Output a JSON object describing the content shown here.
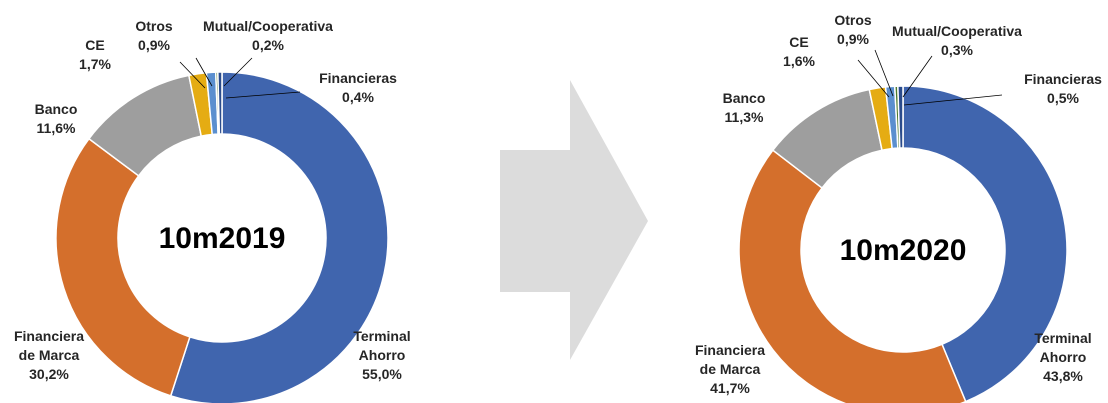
{
  "chart_data": [
    {
      "type": "pie",
      "title": "10m2019",
      "categories": [
        "Terminal Ahorro",
        "Financiera de Marca",
        "Banco",
        "CE",
        "Otros",
        "Mutual/Cooperativa",
        "Financieras"
      ],
      "values": [
        55.0,
        30.2,
        11.6,
        1.7,
        0.9,
        0.2,
        0.4
      ],
      "labels": [
        [
          "Terminal",
          "Ahorro",
          "55,0%"
        ],
        [
          "Financiera",
          "de Marca",
          "30,2%"
        ],
        [
          "Banco",
          "11,6%"
        ],
        [
          "CE",
          "1,7%"
        ],
        [
          "Otros",
          "0,9%"
        ],
        [
          "Mutual/Cooperativa",
          "0,2%"
        ],
        [
          "Financieras",
          "0,4%"
        ]
      ]
    },
    {
      "type": "pie",
      "title": "10m2020",
      "categories": [
        "Terminal Ahorro",
        "Financiera de Marca",
        "Banco",
        "CE",
        "Otros",
        "Mutual/Cooperativa",
        "Financieras"
      ],
      "values": [
        43.8,
        41.7,
        11.3,
        1.6,
        0.9,
        0.3,
        0.5
      ],
      "labels": [
        [
          "Terminal",
          "Ahorro",
          "43,8%"
        ],
        [
          "Financiera",
          "de Marca",
          "41,7%"
        ],
        [
          "Banco",
          "11,3%"
        ],
        [
          "CE",
          "1,6%"
        ],
        [
          "Otros",
          "0,9%"
        ],
        [
          "Mutual/Cooperativa",
          "0,3%"
        ],
        [
          "Financieras",
          "0,5%"
        ]
      ]
    }
  ],
  "colors": [
    "#4065ae",
    "#d46f2c",
    "#9e9e9e",
    "#e5ac13",
    "#5b8fcf",
    "#4c7a2c",
    "#2a4b8c"
  ],
  "arrow_color": "#dcdcdc"
}
